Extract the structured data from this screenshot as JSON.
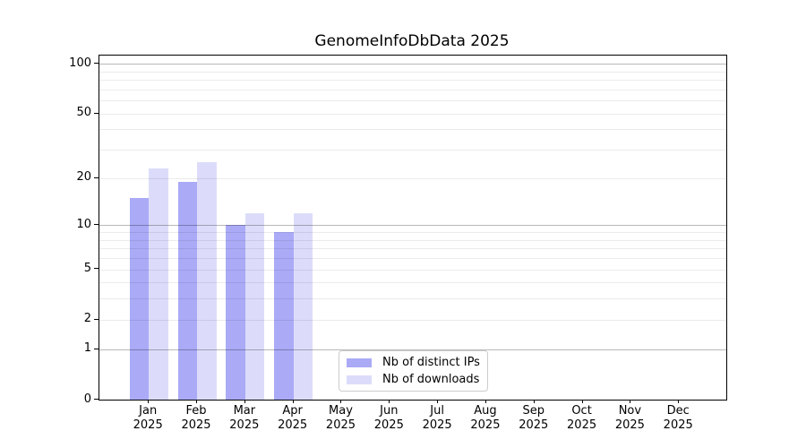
{
  "chart_data": {
    "type": "bar",
    "title": "GenomeInfoDbData 2025",
    "categories": [
      "Jan",
      "Feb",
      "Mar",
      "Apr",
      "May",
      "Jun",
      "Jul",
      "Aug",
      "Sep",
      "Oct",
      "Nov",
      "Dec"
    ],
    "year_label": "2025",
    "series": [
      {
        "name": "Nb of distinct IPs",
        "color": "#aaaaf7",
        "values": [
          15,
          19,
          10,
          9,
          null,
          null,
          null,
          null,
          null,
          null,
          null,
          null
        ]
      },
      {
        "name": "Nb of downloads",
        "color": "#dcdcfa",
        "values": [
          23,
          25,
          12,
          12,
          null,
          null,
          null,
          null,
          null,
          null,
          null,
          null
        ]
      }
    ],
    "y_axis": {
      "scale": "log1p",
      "ylim": [
        0,
        112
      ],
      "tick_labels": [
        0,
        1,
        2,
        5,
        10,
        20,
        50,
        100
      ],
      "major_gridlines": [
        1,
        10,
        100
      ],
      "minor_gridlines": [
        2,
        3,
        4,
        5,
        6,
        7,
        8,
        9,
        20,
        30,
        40,
        50,
        60,
        70,
        80,
        90
      ]
    },
    "grid": "horizontal",
    "legend_position": "bottom-center-inside"
  }
}
